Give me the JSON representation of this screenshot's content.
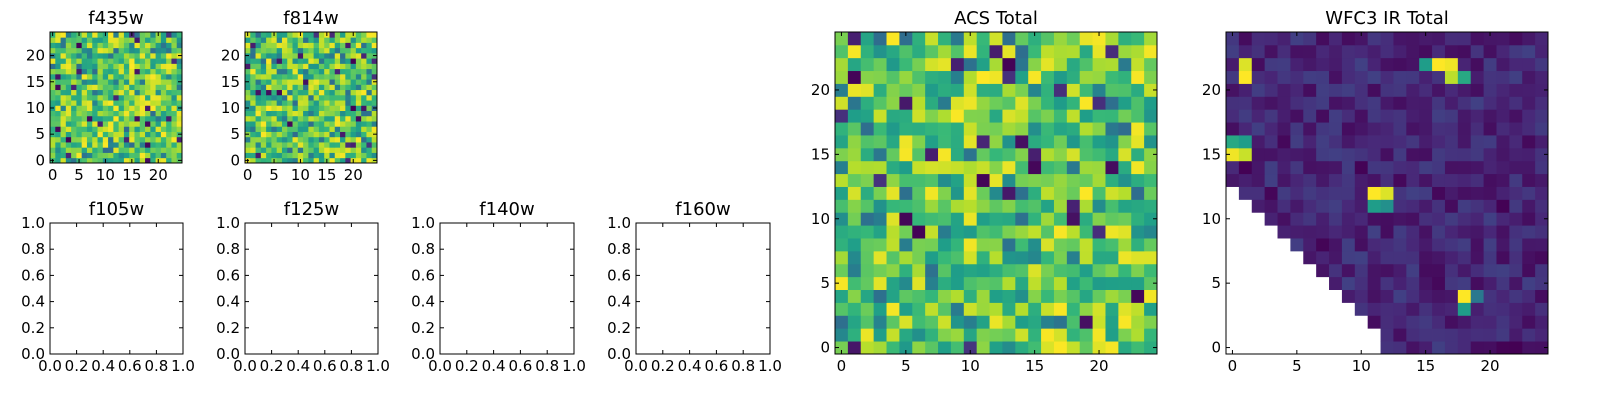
{
  "figure": {
    "panels": [
      "f435w",
      "f814w",
      "f105w",
      "f125w",
      "f140w",
      "f160w",
      "ACS Total",
      "WFC3 IR Total"
    ]
  },
  "chart_data": [
    {
      "id": "f435w",
      "type": "heatmap",
      "title": "f435w",
      "colormap": "viridis",
      "grid_size": [
        25,
        25
      ],
      "xlim": [
        -0.5,
        24.5
      ],
      "ylim": [
        -0.5,
        24.5
      ],
      "xticks": [
        0,
        5,
        10,
        15,
        20
      ],
      "yticks": [
        0,
        5,
        10,
        15,
        20
      ],
      "value_range": [
        0,
        1
      ],
      "value_distribution": "mostly green-yellow (0.5-1.0) with scattered dark cells",
      "seed": 11,
      "masked_lower_left": false,
      "hot_spots": []
    },
    {
      "id": "f814w",
      "type": "heatmap",
      "title": "f814w",
      "colormap": "viridis",
      "grid_size": [
        25,
        25
      ],
      "xlim": [
        -0.5,
        24.5
      ],
      "ylim": [
        -0.5,
        24.5
      ],
      "xticks": [
        0,
        5,
        10,
        15,
        20
      ],
      "yticks": [
        0,
        5,
        10,
        15,
        20
      ],
      "value_range": [
        0,
        1
      ],
      "value_distribution": "mostly green-yellow (0.5-1.0) with scattered dark cells",
      "seed": 29,
      "masked_lower_left": false,
      "hot_spots": []
    },
    {
      "id": "f105w",
      "type": "scatter",
      "title": "f105w",
      "empty": true,
      "xlim": [
        0,
        1
      ],
      "ylim": [
        0,
        1
      ],
      "xticks": [
        "0.0",
        "0.2",
        "0.4",
        "0.6",
        "0.8",
        "1.0"
      ],
      "yticks": [
        "0.0",
        "0.2",
        "0.4",
        "0.6",
        "0.8",
        "1.0"
      ]
    },
    {
      "id": "f125w",
      "type": "scatter",
      "title": "f125w",
      "empty": true,
      "xlim": [
        0,
        1
      ],
      "ylim": [
        0,
        1
      ],
      "xticks": [
        "0.0",
        "0.2",
        "0.4",
        "0.6",
        "0.8",
        "1.0"
      ],
      "yticks": [
        "0.0",
        "0.2",
        "0.4",
        "0.6",
        "0.8",
        "1.0"
      ]
    },
    {
      "id": "f140w",
      "type": "scatter",
      "title": "f140w",
      "empty": true,
      "xlim": [
        0,
        1
      ],
      "ylim": [
        0,
        1
      ],
      "xticks": [
        "0.0",
        "0.2",
        "0.4",
        "0.6",
        "0.8",
        "1.0"
      ],
      "yticks": [
        "0.0",
        "0.2",
        "0.4",
        "0.6",
        "0.8",
        "1.0"
      ]
    },
    {
      "id": "f160w",
      "type": "scatter",
      "title": "f160w",
      "empty": true,
      "xlim": [
        0,
        1
      ],
      "ylim": [
        0,
        1
      ],
      "xticks": [
        "0.0",
        "0.2",
        "0.4",
        "0.6",
        "0.8",
        "1.0"
      ],
      "yticks": [
        "0.0",
        "0.2",
        "0.4",
        "0.6",
        "0.8",
        "1.0"
      ]
    },
    {
      "id": "acs-total",
      "type": "heatmap",
      "title": "ACS Total",
      "colormap": "viridis",
      "grid_size": [
        25,
        25
      ],
      "xlim": [
        -0.5,
        24.5
      ],
      "ylim": [
        -0.5,
        24.5
      ],
      "xticks": [
        0,
        5,
        10,
        15,
        20
      ],
      "yticks": [
        0,
        5,
        10,
        15,
        20
      ],
      "value_range": [
        0,
        1
      ],
      "value_distribution": "mostly green-yellow (0.5-1.0) with scattered dark cells",
      "seed": 47,
      "masked_lower_left": false,
      "hot_spots": []
    },
    {
      "id": "wfc3-ir-total",
      "type": "heatmap",
      "title": "WFC3 IR Total",
      "colormap": "viridis",
      "grid_size": [
        25,
        25
      ],
      "xlim": [
        -0.5,
        24.5
      ],
      "ylim": [
        -0.5,
        24.5
      ],
      "xticks": [
        0,
        5,
        10,
        15,
        20
      ],
      "yticks": [
        0,
        5,
        10,
        15,
        20
      ],
      "value_range": [
        0,
        1
      ],
      "value_distribution": "mostly dark purple (0.0-0.2) with a few bright cells",
      "seed": 83,
      "masked_lower_left": true,
      "hot_spots": [
        {
          "x": 1,
          "y": 21,
          "value": 1.0
        },
        {
          "x": 1,
          "y": 22,
          "value": 0.95
        },
        {
          "x": 0,
          "y": 15,
          "value": 0.98
        },
        {
          "x": 1,
          "y": 15,
          "value": 0.92
        },
        {
          "x": 0,
          "y": 16,
          "value": 0.6
        },
        {
          "x": 1,
          "y": 16,
          "value": 0.55
        },
        {
          "x": 11,
          "y": 12,
          "value": 1.0
        },
        {
          "x": 12,
          "y": 12,
          "value": 0.95
        },
        {
          "x": 11,
          "y": 11,
          "value": 0.55
        },
        {
          "x": 12,
          "y": 11,
          "value": 0.5
        },
        {
          "x": 15,
          "y": 22,
          "value": 0.55
        },
        {
          "x": 16,
          "y": 22,
          "value": 1.0
        },
        {
          "x": 17,
          "y": 22,
          "value": 0.98
        },
        {
          "x": 17,
          "y": 21,
          "value": 0.9
        },
        {
          "x": 18,
          "y": 21,
          "value": 0.6
        },
        {
          "x": 18,
          "y": 4,
          "value": 1.0
        },
        {
          "x": 18,
          "y": 3,
          "value": 0.55
        },
        {
          "x": 19,
          "y": 4,
          "value": 0.4
        }
      ]
    }
  ]
}
